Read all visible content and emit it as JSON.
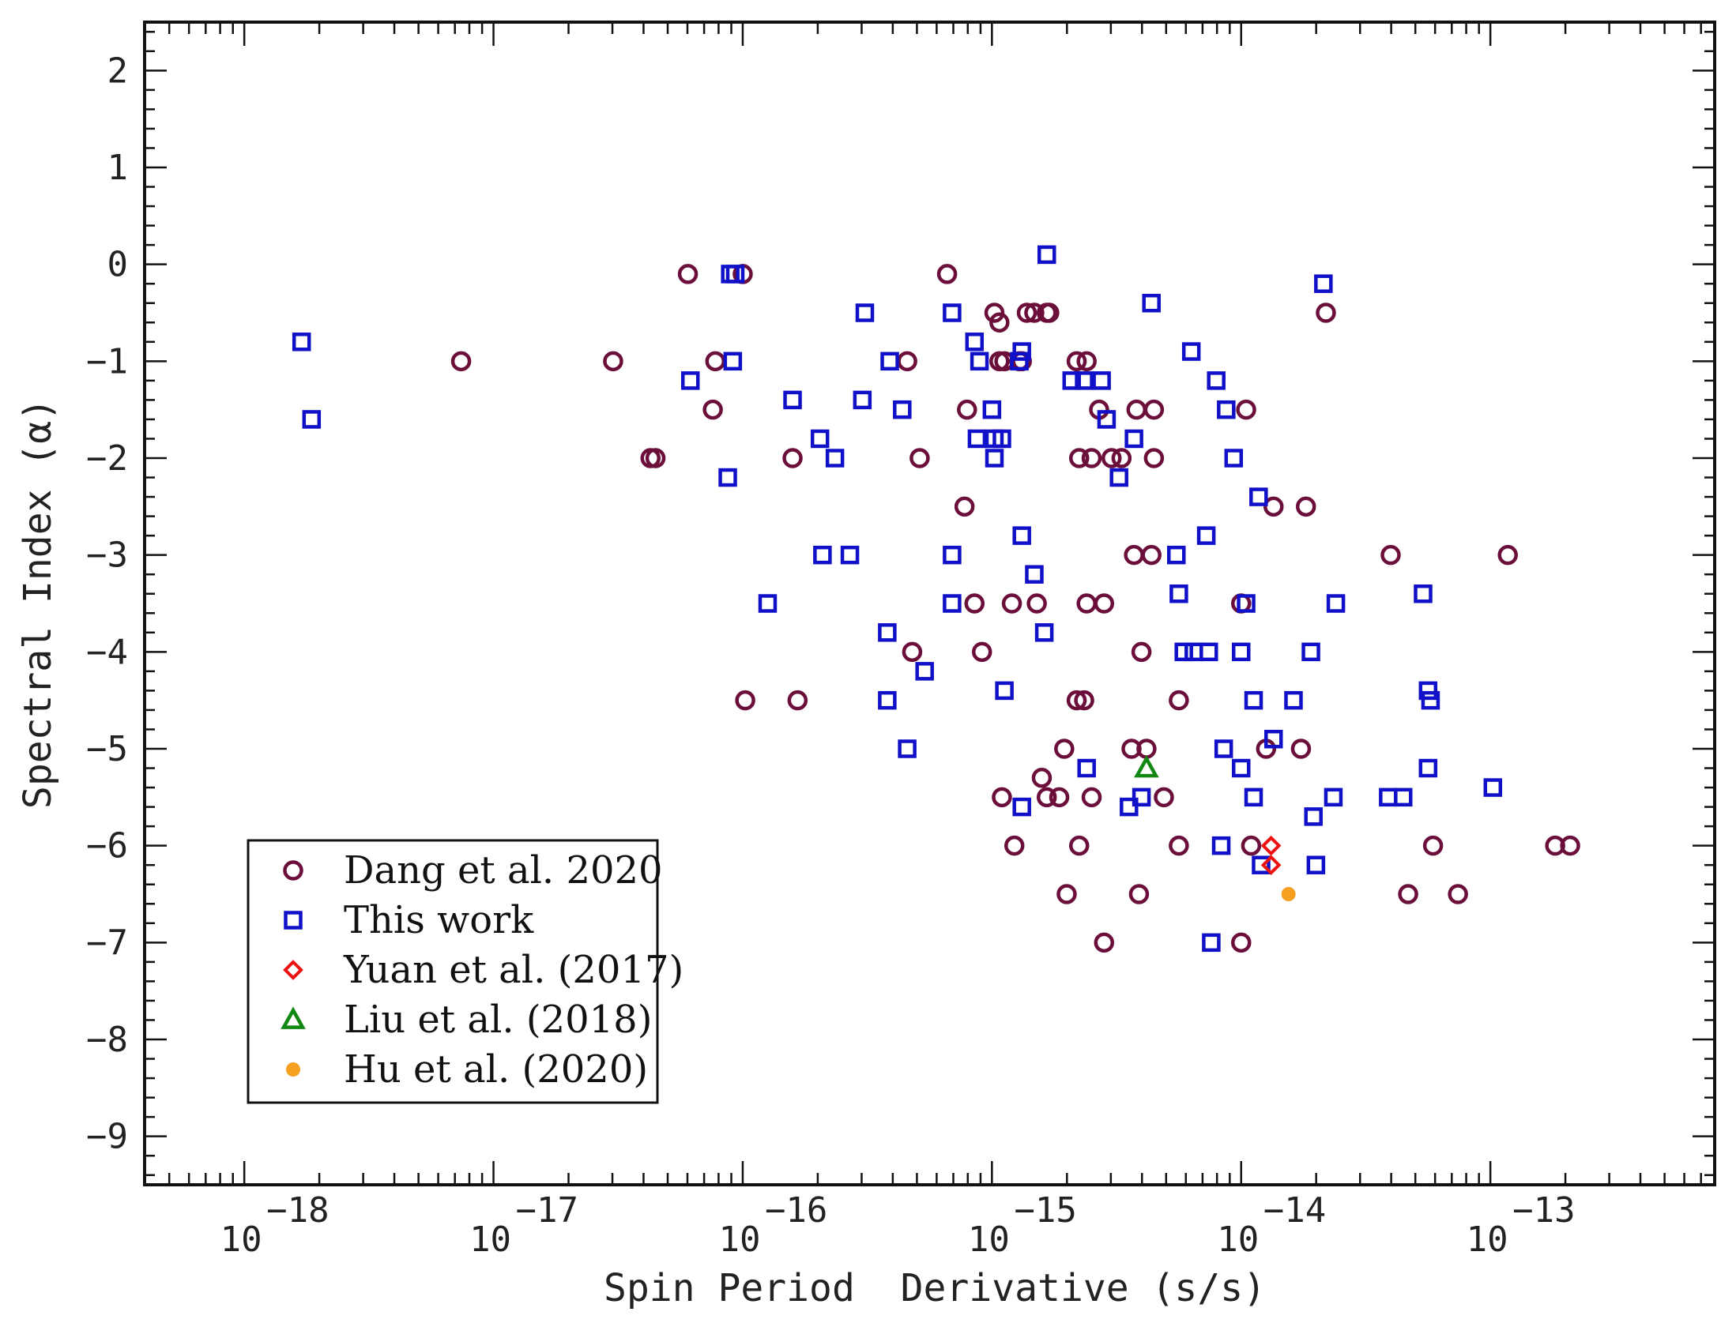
{
  "chart_data": {
    "type": "scatter",
    "title": "",
    "xlabel": "Spin Period  Derivative (s/s)",
    "ylabel": "Spectral Index (α)",
    "xscale": "log",
    "xlim_log10": [
      -18.4,
      -12.1
    ],
    "ylim": [
      -9.5,
      2.5
    ],
    "x_tick_labels": [
      {
        "base": "10",
        "exp": "−18"
      },
      {
        "base": "10",
        "exp": "−17"
      },
      {
        "base": "10",
        "exp": "−16"
      },
      {
        "base": "10",
        "exp": "−15"
      },
      {
        "base": "10",
        "exp": "−14"
      },
      {
        "base": "10",
        "exp": "−13"
      }
    ],
    "x_tick_exponents": [
      -18,
      -17,
      -16,
      -15,
      -14,
      -13
    ],
    "y_ticks": [
      2,
      1,
      0,
      -1,
      -2,
      -3,
      -4,
      -5,
      -6,
      -7,
      -8,
      -9
    ],
    "y_tick_labels": [
      "2",
      "1",
      "0",
      "−1",
      "−2",
      "−3",
      "−4",
      "−5",
      "−6",
      "−7",
      "−8",
      "−9"
    ],
    "legend_position": "bottom-left",
    "series": [
      {
        "name": "Dang et  al. 2020",
        "marker": "circle",
        "color": "#6b0f3a",
        "points": [
          [
            -17.13,
            -1.0
          ],
          [
            -16.52,
            -1.0
          ],
          [
            -16.37,
            -2.0
          ],
          [
            -16.35,
            -2.0
          ],
          [
            -16.22,
            -0.1
          ],
          [
            -16.12,
            -1.5
          ],
          [
            -16.11,
            -1.0
          ],
          [
            -16.0,
            -0.1
          ],
          [
            -15.99,
            -4.5
          ],
          [
            -15.8,
            -2.0
          ],
          [
            -15.78,
            -4.5
          ],
          [
            -15.34,
            -1.0
          ],
          [
            -15.32,
            -4.0
          ],
          [
            -15.29,
            -2.0
          ],
          [
            -15.18,
            -0.1
          ],
          [
            -15.11,
            -2.5
          ],
          [
            -15.1,
            -1.5
          ],
          [
            -15.07,
            -3.5
          ],
          [
            -15.04,
            -4.0
          ],
          [
            -14.96,
            -5.5
          ],
          [
            -14.95,
            -1.0
          ],
          [
            -14.97,
            -1.0
          ],
          [
            -14.99,
            -0.5
          ],
          [
            -14.97,
            -0.6
          ],
          [
            -14.92,
            -3.5
          ],
          [
            -14.91,
            -6.0
          ],
          [
            -14.89,
            -1.0
          ],
          [
            -14.88,
            -1.0
          ],
          [
            -14.86,
            -0.5
          ],
          [
            -14.83,
            -0.5
          ],
          [
            -14.82,
            -3.5
          ],
          [
            -14.8,
            -5.3
          ],
          [
            -14.78,
            -5.5
          ],
          [
            -14.78,
            -0.5
          ],
          [
            -14.77,
            -0.5
          ],
          [
            -14.73,
            -5.5
          ],
          [
            -14.71,
            -5.0
          ],
          [
            -14.7,
            -6.5
          ],
          [
            -14.66,
            -1.0
          ],
          [
            -14.66,
            -4.5
          ],
          [
            -14.65,
            -6.0
          ],
          [
            -14.65,
            -2.0
          ],
          [
            -14.62,
            -1.0
          ],
          [
            -14.63,
            -4.5
          ],
          [
            -14.62,
            -3.5
          ],
          [
            -14.6,
            -2.0
          ],
          [
            -14.6,
            -5.5
          ],
          [
            -14.57,
            -1.5
          ],
          [
            -14.55,
            -3.5
          ],
          [
            -14.55,
            -7.0
          ],
          [
            -14.52,
            -2.0
          ],
          [
            -14.48,
            -2.0
          ],
          [
            -14.44,
            -5.0
          ],
          [
            -14.43,
            -3.0
          ],
          [
            -14.42,
            -1.5
          ],
          [
            -14.41,
            -6.5
          ],
          [
            -14.4,
            -4.0
          ],
          [
            -14.38,
            -5.0
          ],
          [
            -14.36,
            -3.0
          ],
          [
            -14.35,
            -1.5
          ],
          [
            -14.35,
            -2.0
          ],
          [
            -14.31,
            -5.5
          ],
          [
            -14.25,
            -4.5
          ],
          [
            -14.25,
            -6.0
          ],
          [
            -14.0,
            -3.5
          ],
          [
            -14.0,
            -7.0
          ],
          [
            -13.98,
            -1.5
          ],
          [
            -13.96,
            -6.0
          ],
          [
            -13.9,
            -5.0
          ],
          [
            -13.87,
            -2.5
          ],
          [
            -13.76,
            -5.0
          ],
          [
            -13.74,
            -2.5
          ],
          [
            -13.66,
            -0.5
          ],
          [
            -13.4,
            -3.0
          ],
          [
            -13.33,
            -6.5
          ],
          [
            -13.23,
            -6.0
          ],
          [
            -13.13,
            -6.5
          ],
          [
            -12.93,
            -3.0
          ],
          [
            -12.74,
            -6.0
          ],
          [
            -12.68,
            -6.0
          ]
        ]
      },
      {
        "name": "This work",
        "marker": "square",
        "color": "#1010c8",
        "points": [
          [
            -17.77,
            -0.8
          ],
          [
            -17.73,
            -1.6
          ],
          [
            -16.21,
            -1.2
          ],
          [
            -16.03,
            -0.1
          ],
          [
            -16.05,
            -0.1
          ],
          [
            -16.04,
            -1.0
          ],
          [
            -16.06,
            -2.2
          ],
          [
            -15.9,
            -3.5
          ],
          [
            -15.8,
            -1.4
          ],
          [
            -15.69,
            -1.8
          ],
          [
            -15.68,
            -3.0
          ],
          [
            -15.63,
            -2.0
          ],
          [
            -15.57,
            -3.0
          ],
          [
            -15.52,
            -1.4
          ],
          [
            -15.51,
            -0.5
          ],
          [
            -15.41,
            -1.0
          ],
          [
            -15.42,
            -3.8
          ],
          [
            -15.42,
            -4.5
          ],
          [
            -15.36,
            -1.5
          ],
          [
            -15.34,
            -5.0
          ],
          [
            -15.27,
            -4.2
          ],
          [
            -15.16,
            -0.5
          ],
          [
            -15.16,
            -3.0
          ],
          [
            -15.16,
            -3.5
          ],
          [
            -15.06,
            -1.8
          ],
          [
            -15.07,
            -0.8
          ],
          [
            -15.05,
            -1.0
          ],
          [
            -15.0,
            -1.5
          ],
          [
            -14.99,
            -1.8
          ],
          [
            -14.99,
            -2.0
          ],
          [
            -14.96,
            -1.8
          ],
          [
            -14.95,
            -4.4
          ],
          [
            -14.89,
            -1.0
          ],
          [
            -14.88,
            -0.9
          ],
          [
            -14.88,
            -2.8
          ],
          [
            -14.88,
            -5.6
          ],
          [
            -14.83,
            -3.2
          ],
          [
            -14.79,
            -3.8
          ],
          [
            -14.78,
            0.1
          ],
          [
            -14.68,
            -1.2
          ],
          [
            -14.63,
            -1.2
          ],
          [
            -14.62,
            -5.2
          ],
          [
            -14.56,
            -1.2
          ],
          [
            -14.54,
            -1.6
          ],
          [
            -14.49,
            -2.2
          ],
          [
            -14.45,
            -5.6
          ],
          [
            -14.43,
            -1.8
          ],
          [
            -14.4,
            -5.5
          ],
          [
            -14.36,
            -0.4
          ],
          [
            -14.26,
            -3.0
          ],
          [
            -14.25,
            -3.4
          ],
          [
            -14.23,
            -4.0
          ],
          [
            -14.19,
            -4.0
          ],
          [
            -14.2,
            -0.9
          ],
          [
            -14.14,
            -2.8
          ],
          [
            -14.13,
            -4.0
          ],
          [
            -14.12,
            -7.0
          ],
          [
            -14.1,
            -1.2
          ],
          [
            -14.08,
            -6.0
          ],
          [
            -14.07,
            -5.0
          ],
          [
            -14.06,
            -1.5
          ],
          [
            -14.03,
            -2.0
          ],
          [
            -14.0,
            -4.0
          ],
          [
            -14.0,
            -5.2
          ],
          [
            -13.98,
            -3.5
          ],
          [
            -13.95,
            -4.5
          ],
          [
            -13.95,
            -5.5
          ],
          [
            -13.93,
            -2.4
          ],
          [
            -13.92,
            -6.2
          ],
          [
            -13.87,
            -4.9
          ],
          [
            -13.79,
            -4.5
          ],
          [
            -13.71,
            -5.7
          ],
          [
            -13.72,
            -4.0
          ],
          [
            -13.7,
            -6.2
          ],
          [
            -13.67,
            -0.2
          ],
          [
            -13.63,
            -5.5
          ],
          [
            -13.62,
            -3.5
          ],
          [
            -13.41,
            -5.5
          ],
          [
            -13.35,
            -5.5
          ],
          [
            -13.27,
            -3.4
          ],
          [
            -13.25,
            -4.4
          ],
          [
            -13.24,
            -4.5
          ],
          [
            -13.25,
            -5.2
          ],
          [
            -12.99,
            -5.4
          ]
        ]
      },
      {
        "name": "Yuan et al. (2017)",
        "marker": "diamond",
        "color": "#ee1111",
        "points": [
          [
            -13.88,
            -6.0
          ],
          [
            -13.88,
            -6.2
          ]
        ]
      },
      {
        "name": "Liu et al. (2018)",
        "marker": "triangle",
        "color": "#118811",
        "points": [
          [
            -14.38,
            -5.2
          ]
        ]
      },
      {
        "name": "Hu et al. (2020)",
        "marker": "filled-circle",
        "color": "#f5a020",
        "points": [
          [
            -13.81,
            -6.5
          ]
        ]
      }
    ]
  }
}
